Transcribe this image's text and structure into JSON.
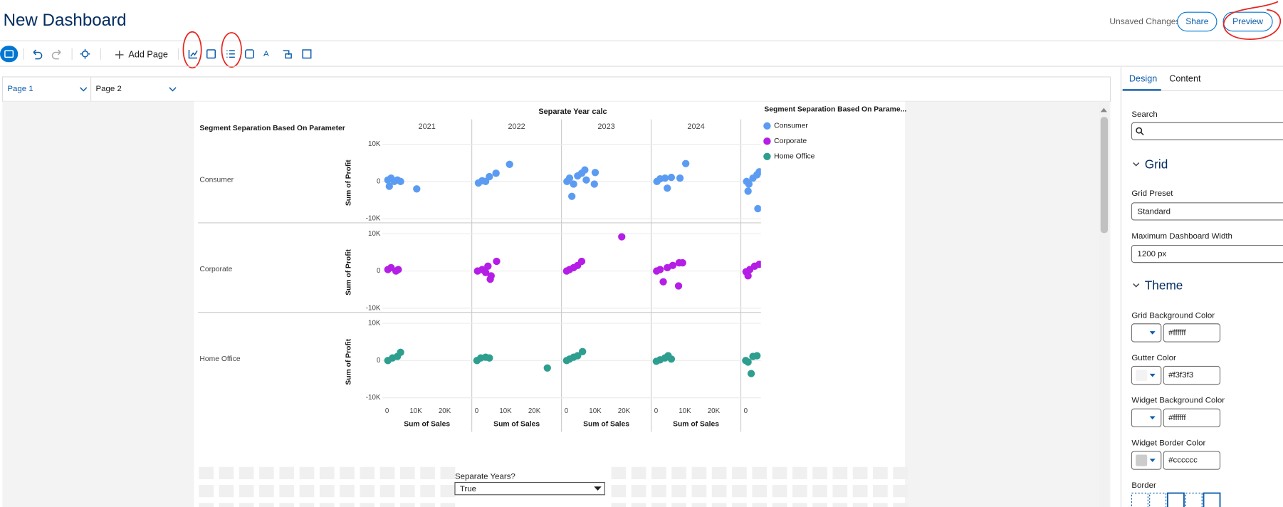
{
  "header": {
    "title": "New Dashboard",
    "status": "Unsaved Changes",
    "buttons": [
      "Share",
      "Preview"
    ]
  },
  "toolbar": {
    "add_page": "Add Page"
  },
  "page_tabs": [
    "Page 1",
    "Page 2"
  ],
  "chart_data": {
    "type": "scatter",
    "title": "Separate Year calc",
    "row_title": "Segment Separation Based On Parameter",
    "legend_title": "Segment Separation Based On Parame...",
    "columns": [
      "2021",
      "2022",
      "2023",
      "2024",
      null
    ],
    "rows": [
      "Consumer",
      "Corporate",
      "Home Office"
    ],
    "xlabel": "Sum of Sales",
    "ylabel": "Sum of Profit",
    "xlim": [
      -1700,
      29400
    ],
    "xticks": [
      0,
      {
        "value": 10000,
        "label": "10K"
      },
      {
        "value": 20000,
        "label": "20K"
      }
    ],
    "ylim": [
      -11000,
      12500
    ],
    "yticks": [
      {
        "value": -10000,
        "label": "-10K"
      },
      0,
      {
        "value": 10000,
        "label": "10K"
      }
    ],
    "grid": true,
    "series": [
      {
        "name": "Consumer",
        "color": "#5b9cf2",
        "panels": [
          {
            "x": [
              300,
              1400,
              2500,
              3600,
              4700,
              800,
              10300
            ],
            "values": [
              400,
              900,
              0,
              400,
              0,
              -1300,
              -2000
            ]
          },
          {
            "x": [
              600,
              1900,
              3100,
              4400,
              6700,
              11400
            ],
            "values": [
              -400,
              200,
              0,
              1300,
              2200,
              4600
            ]
          },
          {
            "x": [
              200,
              1100,
              2500,
              3900,
              5300,
              6400,
              1900,
              6900,
              10000,
              9700
            ],
            "values": [
              0,
              900,
              -700,
              1500,
              2200,
              3100,
              -4000,
              400,
              2400,
              -700
            ]
          },
          {
            "x": [
              300,
              1400,
              3100,
              5300,
              3900,
              8300,
              10300
            ],
            "values": [
              0,
              700,
              900,
              1100,
              -1800,
              900,
              4800
            ]
          },
          {
            "x": [
              300,
              1100,
              2500,
              3900,
              4700,
              800,
              4200
            ],
            "values": [
              0,
              -700,
              900,
              1800,
              2600,
              -2600,
              -7300
            ]
          }
        ]
      },
      {
        "name": "Corporate",
        "color": "#b41ee6",
        "panels": [
          {
            "x": [
              300,
              1400,
              3100,
              3900
            ],
            "values": [
              400,
              900,
              0,
              400
            ]
          },
          {
            "x": [
              300,
              1900,
              3100,
              3900,
              5000,
              6900,
              4700
            ],
            "values": [
              0,
              400,
              -400,
              1300,
              -1300,
              2600,
              -2200
            ]
          },
          {
            "x": [
              100,
              1100,
              2500,
              3900,
              5300,
              19200
            ],
            "values": [
              0,
              400,
              900,
              1500,
              2600,
              9200
            ]
          },
          {
            "x": [
              200,
              1400,
              2500,
              3900,
              5800,
              8000,
              7800,
              9200
            ],
            "values": [
              0,
              400,
              -2900,
              900,
              1500,
              2200,
              -4000,
              2200
            ]
          },
          {
            "x": [
              100,
              1400,
              3100,
              4700,
              800
            ],
            "values": [
              -200,
              400,
              1300,
              1800,
              -1300
            ]
          }
        ]
      },
      {
        "name": "Home Office",
        "color": "#2e9e8e",
        "panels": [
          {
            "x": [
              300,
              1900,
              3600,
              4700
            ],
            "values": [
              0,
              700,
              1100,
              2200
            ]
          },
          {
            "x": [
              100,
              1400,
              3100,
              4400,
              24500
            ],
            "values": [
              0,
              700,
              900,
              700,
              -2000
            ]
          },
          {
            "x": [
              100,
              1100,
              2500,
              3900,
              5600
            ],
            "values": [
              0,
              400,
              900,
              1300,
              2400
            ]
          },
          {
            "x": [
              100,
              1400,
              3100,
              4200,
              5300
            ],
            "values": [
              -200,
              200,
              700,
              1300,
              400
            ]
          },
          {
            "x": [
              0,
              800,
              2500,
              3900,
              1900
            ],
            "values": [
              0,
              -400,
              1100,
              1300,
              -3500
            ]
          }
        ]
      }
    ]
  },
  "filter": {
    "label": "Separate Years?",
    "value": "True"
  },
  "panel": {
    "tabs": [
      "Design",
      "Content"
    ],
    "search": "Search",
    "grid_heading": "Grid",
    "grid_preset_label": "Grid Preset",
    "grid_preset": "Standard",
    "max_width_label": "Maximum Dashboard Width",
    "max_width": "1200 px",
    "theme_heading": "Theme",
    "colors": [
      {
        "label": "Grid Background Color",
        "value": "#ffffff"
      },
      {
        "label": "Gutter Color",
        "value": "#f3f3f3"
      },
      {
        "label": "Widget Background Color",
        "value": "#ffffff"
      },
      {
        "label": "Widget Border Color",
        "value": "#cccccc"
      }
    ],
    "border_label": "Border"
  }
}
